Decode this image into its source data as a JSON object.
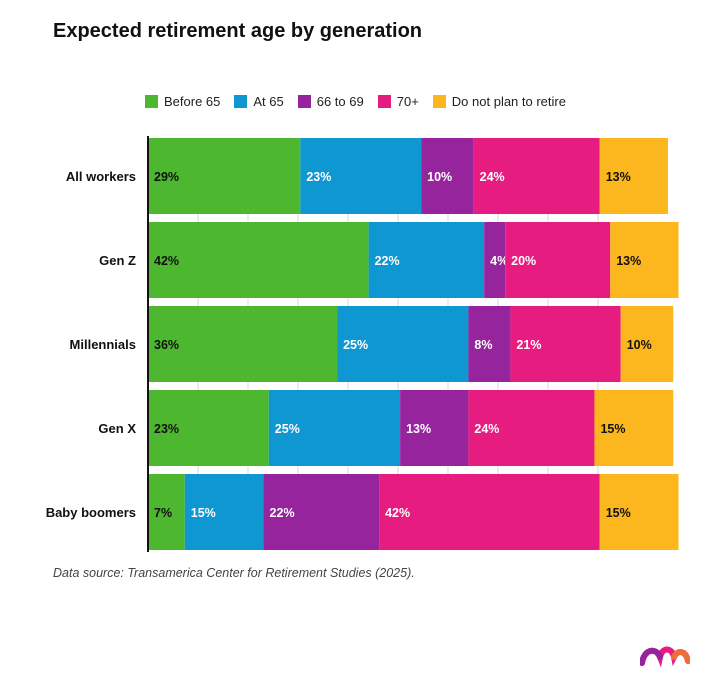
{
  "chart_data": {
    "type": "bar",
    "orientation": "horizontal",
    "stacked": true,
    "title": "Expected retirement age by generation",
    "categories": [
      "All workers",
      "Gen Z",
      "Millennials",
      "Gen X",
      "Baby boomers"
    ],
    "series": [
      {
        "name": "Before 65",
        "color": "#4cb72f",
        "values": [
          29,
          42,
          36,
          23,
          7
        ]
      },
      {
        "name": "At 65",
        "color": "#0e97d0",
        "values": [
          23,
          22,
          25,
          25,
          15
        ]
      },
      {
        "name": "66 to 69",
        "color": "#96249c",
        "values": [
          10,
          4,
          8,
          13,
          22
        ]
      },
      {
        "name": "70+",
        "color": "#e61c80",
        "values": [
          24,
          20,
          21,
          24,
          42
        ]
      },
      {
        "name": "Do not plan to retire",
        "color": "#fbb71d",
        "values": [
          13,
          13,
          10,
          15,
          15
        ]
      }
    ],
    "value_suffix": "%",
    "label_colors": [
      "#111111",
      "#ffffff",
      "#ffffff",
      "#ffffff",
      "#111111"
    ],
    "xlim": [
      0,
      99
    ],
    "gridlines": true,
    "legend_position": "top",
    "source": "Data source: Transamerica Center for Retirement Studies (2025)."
  }
}
